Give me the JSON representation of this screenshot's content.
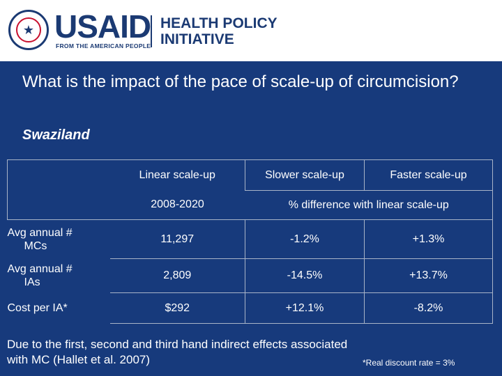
{
  "brand": {
    "usaid": "USAID",
    "tagline": "FROM THE AMERICAN PEOPLE",
    "initiative_line1": "HEALTH POLICY",
    "initiative_line2": "INITIATIVE",
    "colors": {
      "navy": "#1b3a73",
      "slide_bg": "#173a7c",
      "seal_red": "#c8102e"
    }
  },
  "slide": {
    "question": "What is the impact of the pace of scale-up of circumcision?",
    "country": "Swaziland"
  },
  "table": {
    "headers": [
      "Linear scale-up",
      "Slower scale-up",
      "Faster scale-up"
    ],
    "subheaders": {
      "linear_years": "2008-2020",
      "difference": "% difference with linear scale-up"
    },
    "rows": [
      {
        "label_line1": "Avg annual #",
        "label_line2": "MCs",
        "linear": "11,297",
        "slower": "-1.2%",
        "faster": "+1.3%"
      },
      {
        "label_line1": "Avg annual #",
        "label_line2": "IAs",
        "linear": "2,809",
        "slower": "-14.5%",
        "faster": "+13.7%"
      },
      {
        "label_line1": "Cost per IA*",
        "label_line2": "",
        "linear": "$292",
        "slower": "+12.1%",
        "faster": "-8.2%"
      }
    ]
  },
  "footnote": "Due to the first, second and third hand indirect effects associated with MC (Hallet et al. 2007)",
  "discount_note": "*Real discount rate = 3%"
}
